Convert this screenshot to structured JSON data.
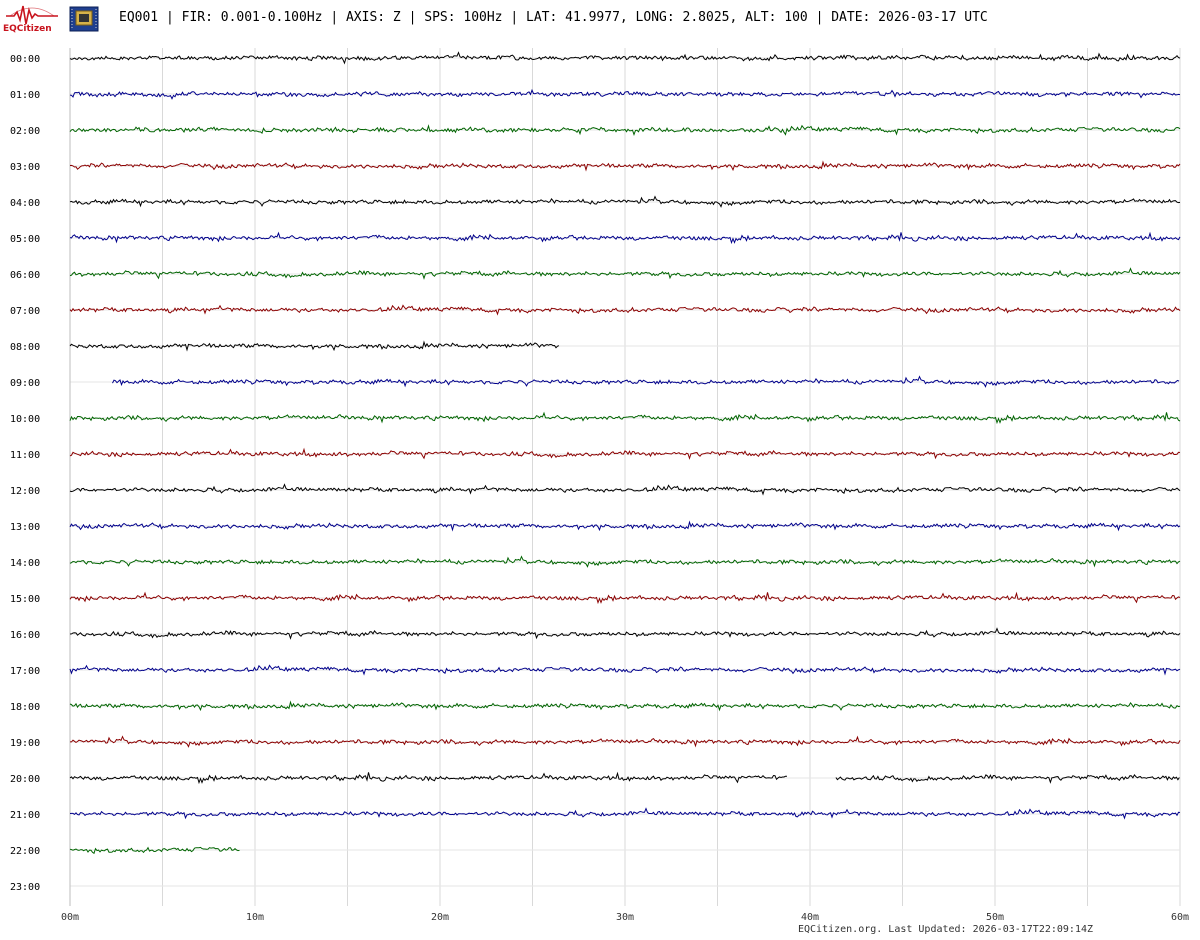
{
  "header": {
    "logo_text": "EQCitizen",
    "title": "EQ001 | FIR: 0.001-0.100Hz | AXIS: Z | SPS: 100Hz | LAT: 41.9977, LONG: 2.8025, ALT: 100 | DATE: 2026-03-17 UTC"
  },
  "footer": {
    "text": "EQCitizen.org. Last Updated: 2026-03-17T22:09:14Z"
  },
  "chart_data": {
    "type": "line",
    "title": "",
    "xlabel": "",
    "ylabel": "",
    "xlim": [
      0,
      60
    ],
    "x_ticks": [
      "00m",
      "10m",
      "20m",
      "30m",
      "40m",
      "50m",
      "60m"
    ],
    "x_tick_values": [
      0,
      10,
      20,
      30,
      40,
      50,
      60
    ],
    "minor_grid_step": 5,
    "grid": true,
    "colors": [
      "#000000",
      "#00008b",
      "#006400",
      "#8b0000"
    ],
    "series": [
      {
        "hour": "00:00",
        "segments": [
          [
            0,
            60
          ]
        ]
      },
      {
        "hour": "01:00",
        "segments": [
          [
            0,
            60
          ]
        ]
      },
      {
        "hour": "02:00",
        "segments": [
          [
            0,
            60
          ]
        ]
      },
      {
        "hour": "03:00",
        "segments": [
          [
            0,
            60
          ]
        ]
      },
      {
        "hour": "04:00",
        "segments": [
          [
            0,
            60
          ]
        ]
      },
      {
        "hour": "05:00",
        "segments": [
          [
            0,
            60
          ]
        ]
      },
      {
        "hour": "06:00",
        "segments": [
          [
            0,
            60
          ]
        ]
      },
      {
        "hour": "07:00",
        "segments": [
          [
            0,
            60
          ]
        ]
      },
      {
        "hour": "08:00",
        "segments": [
          [
            0,
            26.5
          ]
        ]
      },
      {
        "hour": "09:00",
        "segments": [
          [
            2.3,
            60
          ]
        ]
      },
      {
        "hour": "10:00",
        "segments": [
          [
            0,
            60
          ]
        ]
      },
      {
        "hour": "11:00",
        "segments": [
          [
            0,
            60
          ]
        ]
      },
      {
        "hour": "12:00",
        "segments": [
          [
            0,
            60
          ]
        ]
      },
      {
        "hour": "13:00",
        "segments": [
          [
            0,
            60
          ]
        ]
      },
      {
        "hour": "14:00",
        "segments": [
          [
            0,
            60
          ]
        ]
      },
      {
        "hour": "15:00",
        "segments": [
          [
            0,
            60
          ]
        ]
      },
      {
        "hour": "16:00",
        "segments": [
          [
            0,
            60
          ]
        ]
      },
      {
        "hour": "17:00",
        "segments": [
          [
            0,
            60
          ]
        ]
      },
      {
        "hour": "18:00",
        "segments": [
          [
            0,
            60
          ]
        ]
      },
      {
        "hour": "19:00",
        "segments": [
          [
            0,
            60
          ]
        ]
      },
      {
        "hour": "20:00",
        "segments": [
          [
            0,
            38.8
          ],
          [
            41.4,
            60
          ]
        ]
      },
      {
        "hour": "21:00",
        "segments": [
          [
            0,
            60
          ]
        ]
      },
      {
        "hour": "22:00",
        "segments": [
          [
            0,
            9.2
          ]
        ]
      },
      {
        "hour": "23:00",
        "segments": []
      }
    ]
  }
}
